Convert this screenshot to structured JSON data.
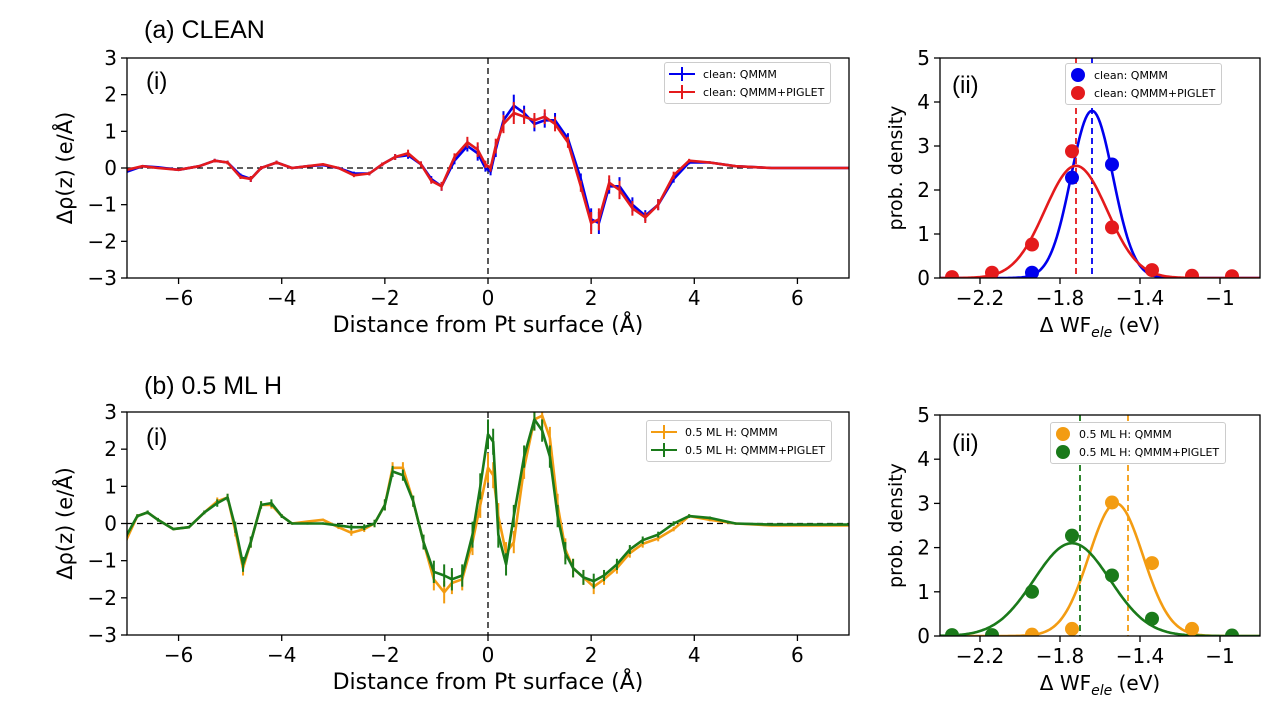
{
  "titles": {
    "row_a": "(a) CLEAN",
    "row_b": "(b) 0.5 ML H"
  },
  "panel_labels": {
    "a_i": "(i)",
    "a_ii": "(ii)",
    "b_i": "(i)",
    "b_ii": "(ii)"
  },
  "colors": {
    "blue": "#0000ee",
    "red": "#e41a1c",
    "orange": "#f39c12",
    "green": "#1a7a1a"
  },
  "chart_data": [
    {
      "id": "a_i",
      "type": "line",
      "xlabel": "Distance from Pt surface (Å)",
      "ylabel": "Δρ(z) (e/Å)",
      "xlim": [
        -7,
        7
      ],
      "ylim": [
        -3,
        3
      ],
      "xticks": [
        -6,
        -4,
        -2,
        0,
        2,
        4,
        6
      ],
      "yticks": [
        -3,
        -2,
        -1,
        0,
        1,
        2,
        3
      ],
      "legend_position": "top-right",
      "series": [
        {
          "name": "clean: QMMM",
          "color": "#0000ee",
          "x": [
            -7,
            -6.7,
            -6.4,
            -6,
            -5.6,
            -5.3,
            -5.05,
            -4.8,
            -4.6,
            -4.4,
            -4.1,
            -3.8,
            -3.5,
            -3.2,
            -2.9,
            -2.6,
            -2.3,
            -2.05,
            -1.8,
            -1.55,
            -1.3,
            -1.1,
            -0.9,
            -0.65,
            -0.4,
            -0.2,
            -0.05,
            0.05,
            0.15,
            0.3,
            0.5,
            0.7,
            0.9,
            1.1,
            1.3,
            1.55,
            1.8,
            2.0,
            2.15,
            2.35,
            2.55,
            2.8,
            3.05,
            3.3,
            3.6,
            3.9,
            4.3,
            4.8,
            5.5,
            6.2,
            7
          ],
          "y": [
            -0.1,
            0.05,
            0.02,
            -0.05,
            0.05,
            0.2,
            0.15,
            -0.2,
            -0.3,
            0.0,
            0.15,
            0.0,
            0.05,
            0.08,
            0.0,
            -0.15,
            -0.15,
            0.1,
            0.3,
            0.35,
            0.1,
            -0.3,
            -0.5,
            0.2,
            0.6,
            0.4,
            0.0,
            -0.1,
            0.5,
            1.3,
            1.7,
            1.5,
            1.2,
            1.3,
            1.3,
            0.8,
            -0.3,
            -1.4,
            -1.5,
            -0.5,
            -0.5,
            -1.0,
            -1.3,
            -1.0,
            -0.3,
            0.15,
            0.15,
            0.05,
            0.0,
            0.0,
            0.0
          ],
          "yerr": [
            0.02,
            0.02,
            0.02,
            0.02,
            0.03,
            0.05,
            0.05,
            0.05,
            0.08,
            0.05,
            0.05,
            0.03,
            0.03,
            0.03,
            0.03,
            0.05,
            0.05,
            0.05,
            0.08,
            0.1,
            0.08,
            0.08,
            0.12,
            0.1,
            0.15,
            0.2,
            0.1,
            0.1,
            0.2,
            0.25,
            0.3,
            0.2,
            0.2,
            0.2,
            0.2,
            0.15,
            0.15,
            0.3,
            0.3,
            0.2,
            0.25,
            0.2,
            0.15,
            0.15,
            0.1,
            0.05,
            0.03,
            0.02,
            0.01,
            0.01,
            0.01
          ]
        },
        {
          "name": "clean: QMMM+PIGLET",
          "color": "#e41a1c",
          "x": [
            -7,
            -6.7,
            -6.4,
            -6,
            -5.6,
            -5.3,
            -5.05,
            -4.8,
            -4.6,
            -4.4,
            -4.1,
            -3.8,
            -3.5,
            -3.2,
            -2.9,
            -2.6,
            -2.3,
            -2.05,
            -1.8,
            -1.55,
            -1.3,
            -1.1,
            -0.9,
            -0.65,
            -0.4,
            -0.2,
            -0.05,
            0.05,
            0.15,
            0.3,
            0.5,
            0.7,
            0.9,
            1.1,
            1.3,
            1.55,
            1.8,
            2.0,
            2.15,
            2.35,
            2.55,
            2.8,
            3.05,
            3.3,
            3.6,
            3.9,
            4.3,
            4.8,
            5.5,
            6.2,
            7
          ],
          "y": [
            -0.05,
            0.05,
            0.0,
            -0.05,
            0.05,
            0.2,
            0.15,
            -0.25,
            -0.3,
            0.0,
            0.15,
            0.0,
            0.05,
            0.1,
            0.0,
            -0.2,
            -0.15,
            0.1,
            0.3,
            0.4,
            0.1,
            -0.35,
            -0.5,
            0.3,
            0.7,
            0.5,
            0.1,
            0.0,
            0.6,
            1.2,
            1.5,
            1.4,
            1.3,
            1.4,
            1.2,
            0.7,
            -0.5,
            -1.5,
            -1.4,
            -0.4,
            -0.6,
            -1.1,
            -1.35,
            -1.0,
            -0.2,
            0.2,
            0.15,
            0.05,
            0.0,
            0.0,
            0.0
          ],
          "yerr": [
            0.02,
            0.02,
            0.02,
            0.02,
            0.03,
            0.05,
            0.05,
            0.05,
            0.08,
            0.05,
            0.05,
            0.03,
            0.03,
            0.03,
            0.03,
            0.05,
            0.05,
            0.05,
            0.08,
            0.1,
            0.08,
            0.08,
            0.12,
            0.1,
            0.15,
            0.2,
            0.1,
            0.1,
            0.2,
            0.25,
            0.3,
            0.2,
            0.2,
            0.2,
            0.2,
            0.15,
            0.15,
            0.3,
            0.3,
            0.2,
            0.25,
            0.2,
            0.15,
            0.15,
            0.1,
            0.05,
            0.03,
            0.02,
            0.01,
            0.01,
            0.01
          ]
        }
      ]
    },
    {
      "id": "a_ii",
      "type": "scatter",
      "xlabel": "Δ WF",
      "xlabel_sub": "ele",
      "xlabel_unit": " (eV)",
      "ylabel": "prob. density",
      "xlim": [
        -2.4,
        -0.8
      ],
      "ylim": [
        0,
        5
      ],
      "xticks": [
        -2.2,
        -1.8,
        -1.4,
        -1.0
      ],
      "yticks": [
        0,
        1,
        2,
        3,
        4,
        5
      ],
      "legend_position": "top-right",
      "series": [
        {
          "name": "clean: QMMM",
          "color": "#0000ee",
          "points_x": [
            -1.94,
            -1.74,
            -1.54
          ],
          "points_y": [
            0.12,
            2.28,
            2.58
          ],
          "gauss_mean": -1.64,
          "gauss_sigma": 0.105,
          "gauss_peak": 3.8,
          "vline": -1.64
        },
        {
          "name": "clean: QMMM+PIGLET",
          "color": "#e41a1c",
          "points_x": [
            -2.34,
            -2.14,
            -1.94,
            -1.74,
            -1.54,
            -1.34,
            -1.14,
            -0.94
          ],
          "points_y": [
            0.02,
            0.12,
            0.76,
            2.88,
            1.15,
            0.18,
            0.05,
            0.04
          ],
          "gauss_mean": -1.72,
          "gauss_sigma": 0.155,
          "gauss_peak": 2.55,
          "vline": -1.72
        }
      ]
    },
    {
      "id": "b_i",
      "type": "line",
      "xlabel": "Distance from Pt surface (Å)",
      "ylabel": "Δρ(z) (e/Å)",
      "xlim": [
        -7,
        7
      ],
      "ylim": [
        -3,
        3
      ],
      "xticks": [
        -6,
        -4,
        -2,
        0,
        2,
        4,
        6
      ],
      "yticks": [
        -3,
        -2,
        -1,
        0,
        1,
        2,
        3
      ],
      "legend_position": "top-right",
      "series": [
        {
          "name": "0.5 ML H: QMMM",
          "color": "#f39c12",
          "x": [
            -7,
            -6.8,
            -6.6,
            -6.4,
            -6.1,
            -5.8,
            -5.5,
            -5.25,
            -5.05,
            -4.9,
            -4.75,
            -4.6,
            -4.4,
            -4.2,
            -4.0,
            -3.8,
            -3.5,
            -3.2,
            -2.9,
            -2.65,
            -2.4,
            -2.2,
            -2.0,
            -1.85,
            -1.65,
            -1.45,
            -1.25,
            -1.05,
            -0.85,
            -0.7,
            -0.5,
            -0.3,
            -0.15,
            0.0,
            0.1,
            0.2,
            0.35,
            0.5,
            0.7,
            0.9,
            1.05,
            1.2,
            1.35,
            1.5,
            1.65,
            1.85,
            2.05,
            2.25,
            2.5,
            2.75,
            3.0,
            3.3,
            3.6,
            3.9,
            4.3,
            4.8,
            5.5,
            6.2,
            7
          ],
          "y": [
            -0.4,
            0.2,
            0.3,
            0.1,
            -0.15,
            -0.1,
            0.3,
            0.6,
            0.7,
            -0.2,
            -1.2,
            -0.5,
            0.5,
            0.5,
            0.2,
            0.0,
            0.05,
            0.1,
            -0.1,
            -0.25,
            -0.15,
            0.0,
            0.5,
            1.5,
            1.5,
            0.6,
            -0.5,
            -1.5,
            -1.85,
            -1.6,
            -1.5,
            -0.5,
            0.5,
            1.5,
            1.3,
            0.2,
            -0.8,
            -0.5,
            1.5,
            2.8,
            2.9,
            2.3,
            0.5,
            -0.7,
            -1.2,
            -1.45,
            -1.7,
            -1.5,
            -1.2,
            -0.8,
            -0.55,
            -0.4,
            -0.15,
            0.2,
            0.1,
            0.0,
            -0.05,
            -0.05,
            -0.05
          ],
          "yerr": [
            0.05,
            0.05,
            0.05,
            0.05,
            0.03,
            0.03,
            0.05,
            0.1,
            0.1,
            0.15,
            0.2,
            0.15,
            0.1,
            0.1,
            0.05,
            0.03,
            0.03,
            0.03,
            0.05,
            0.08,
            0.08,
            0.1,
            0.15,
            0.15,
            0.15,
            0.15,
            0.2,
            0.3,
            0.3,
            0.3,
            0.3,
            0.35,
            0.35,
            0.4,
            0.35,
            0.35,
            0.3,
            0.3,
            0.3,
            0.3,
            0.3,
            0.3,
            0.3,
            0.3,
            0.25,
            0.2,
            0.2,
            0.15,
            0.15,
            0.12,
            0.1,
            0.08,
            0.06,
            0.05,
            0.04,
            0.03,
            0.02,
            0.02,
            0.02
          ]
        },
        {
          "name": "0.5 ML H: QMMM+PIGLET",
          "color": "#1a7a1a",
          "x": [
            -7,
            -6.8,
            -6.6,
            -6.4,
            -6.1,
            -5.8,
            -5.5,
            -5.25,
            -5.05,
            -4.9,
            -4.75,
            -4.6,
            -4.4,
            -4.2,
            -4.0,
            -3.8,
            -3.5,
            -3.2,
            -2.9,
            -2.65,
            -2.4,
            -2.2,
            -2.0,
            -1.85,
            -1.65,
            -1.45,
            -1.25,
            -1.05,
            -0.85,
            -0.7,
            -0.5,
            -0.3,
            -0.15,
            0.0,
            0.1,
            0.2,
            0.35,
            0.5,
            0.7,
            0.9,
            1.05,
            1.2,
            1.35,
            1.5,
            1.65,
            1.85,
            2.05,
            2.25,
            2.5,
            2.75,
            3.0,
            3.3,
            3.6,
            3.9,
            4.3,
            4.8,
            5.5,
            6.2,
            7
          ],
          "y": [
            -0.3,
            0.2,
            0.3,
            0.1,
            -0.15,
            -0.1,
            0.3,
            0.55,
            0.7,
            -0.1,
            -1.1,
            -0.5,
            0.5,
            0.55,
            0.2,
            0.0,
            0.0,
            0.0,
            -0.05,
            -0.1,
            -0.1,
            0.0,
            0.5,
            1.4,
            1.3,
            0.6,
            -0.5,
            -1.3,
            -1.4,
            -1.5,
            -1.4,
            -0.3,
            1.0,
            2.4,
            2.2,
            -0.3,
            -1.1,
            0.2,
            1.8,
            2.8,
            2.5,
            1.8,
            0.2,
            -0.8,
            -1.2,
            -1.45,
            -1.55,
            -1.4,
            -1.1,
            -0.7,
            -0.45,
            -0.3,
            0.0,
            0.2,
            0.15,
            0.0,
            -0.03,
            -0.03,
            -0.03
          ],
          "yerr": [
            0.05,
            0.05,
            0.05,
            0.05,
            0.03,
            0.03,
            0.05,
            0.1,
            0.1,
            0.15,
            0.2,
            0.15,
            0.1,
            0.1,
            0.05,
            0.03,
            0.03,
            0.03,
            0.05,
            0.08,
            0.08,
            0.1,
            0.15,
            0.15,
            0.15,
            0.15,
            0.2,
            0.3,
            0.3,
            0.3,
            0.3,
            0.35,
            0.35,
            0.4,
            0.35,
            0.35,
            0.3,
            0.3,
            0.3,
            0.3,
            0.3,
            0.3,
            0.3,
            0.3,
            0.25,
            0.2,
            0.2,
            0.15,
            0.15,
            0.12,
            0.1,
            0.08,
            0.06,
            0.05,
            0.04,
            0.03,
            0.02,
            0.02,
            0.02
          ]
        }
      ]
    },
    {
      "id": "b_ii",
      "type": "scatter",
      "xlabel": "Δ WF",
      "xlabel_sub": "ele",
      "xlabel_unit": " (eV)",
      "ylabel": "prob. density",
      "xlim": [
        -2.4,
        -0.8
      ],
      "ylim": [
        0,
        5
      ],
      "xticks": [
        -2.2,
        -1.8,
        -1.4,
        -1.0
      ],
      "yticks": [
        0,
        1,
        2,
        3,
        4,
        5
      ],
      "legend_position": "top-right",
      "series": [
        {
          "name": "0.5 ML H: QMMM",
          "color": "#f39c12",
          "points_x": [
            -1.94,
            -1.74,
            -1.54,
            -1.34,
            -1.14
          ],
          "points_y": [
            0.03,
            0.16,
            3.02,
            1.65,
            0.16
          ],
          "gauss_mean": -1.52,
          "gauss_sigma": 0.135,
          "gauss_peak": 3.0,
          "vline": -1.46
        },
        {
          "name": "0.5 ML H: QMMM+PIGLET",
          "color": "#1a7a1a",
          "points_x": [
            -2.34,
            -2.14,
            -1.94,
            -1.74,
            -1.54,
            -1.34,
            -0.94
          ],
          "points_y": [
            0.02,
            0.02,
            1.0,
            2.27,
            1.37,
            0.39,
            0.01
          ],
          "gauss_mean": -1.74,
          "gauss_sigma": 0.19,
          "gauss_peak": 2.1,
          "vline": -1.7
        }
      ]
    }
  ]
}
